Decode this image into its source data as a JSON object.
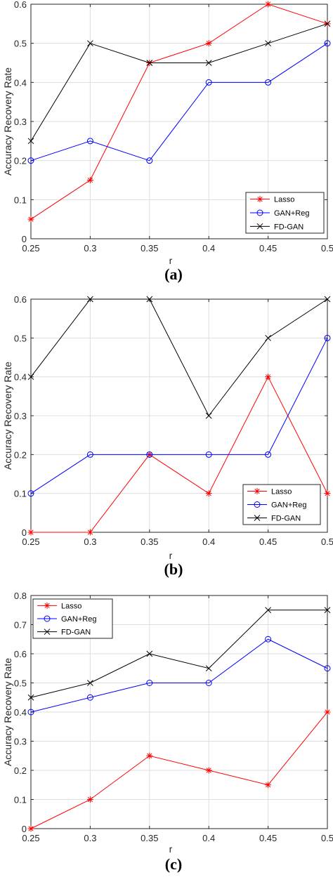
{
  "chart_data": [
    {
      "type": "line",
      "caption": "(a)",
      "xlabel": "r",
      "ylabel": "Accuracy Recovery Rate",
      "x": [
        0.25,
        0.3,
        0.35,
        0.4,
        0.45,
        0.5
      ],
      "xtick_labels": [
        "0.25",
        "0.3",
        "0.35",
        "0.4",
        "0.45",
        "0.5"
      ],
      "xlim": [
        0.25,
        0.5
      ],
      "ylim": [
        0,
        0.6
      ],
      "yticks": [
        0,
        0.1,
        0.2,
        0.3,
        0.4,
        0.5,
        0.6
      ],
      "ytick_labels": [
        "0",
        "0.1",
        "0.2",
        "0.3",
        "0.4",
        "0.5",
        "0.6"
      ],
      "grid": true,
      "legend_position": "bottom-right",
      "series": [
        {
          "name": "Lasso",
          "color": "#ff0000",
          "marker": "star",
          "values": [
            0.05,
            0.15,
            0.45,
            0.5,
            0.6,
            0.55
          ]
        },
        {
          "name": "GAN+Reg",
          "color": "#0000ff",
          "marker": "circle",
          "values": [
            0.2,
            0.25,
            0.2,
            0.4,
            0.4,
            0.5
          ]
        },
        {
          "name": "FD-GAN",
          "color": "#000000",
          "marker": "x",
          "values": [
            0.25,
            0.5,
            0.45,
            0.45,
            0.5,
            0.55
          ]
        }
      ]
    },
    {
      "type": "line",
      "caption": "(b)",
      "xlabel": "r",
      "ylabel": "Accuracy Recovery Rate",
      "x": [
        0.25,
        0.3,
        0.35,
        0.4,
        0.45,
        0.5
      ],
      "xtick_labels": [
        "0.25",
        "0.3",
        "0.35",
        "0.4",
        "0.45",
        "0.5"
      ],
      "xlim": [
        0.25,
        0.5
      ],
      "ylim": [
        0,
        0.6
      ],
      "yticks": [
        0,
        0.1,
        0.2,
        0.3,
        0.4,
        0.5,
        0.6
      ],
      "ytick_labels": [
        "0",
        "0.1",
        "0.2",
        "0.3",
        "0.4",
        "0.5",
        "0.6"
      ],
      "grid": true,
      "legend_position": "bottom-right",
      "series": [
        {
          "name": "Lasso",
          "color": "#ff0000",
          "marker": "star",
          "values": [
            0,
            0,
            0.2,
            0.1,
            0.4,
            0.1
          ]
        },
        {
          "name": "GAN+Reg",
          "color": "#0000ff",
          "marker": "circle",
          "values": [
            0.1,
            0.2,
            0.2,
            0.2,
            0.2,
            0.5
          ]
        },
        {
          "name": "FD-GAN",
          "color": "#000000",
          "marker": "x",
          "values": [
            0.4,
            0.6,
            0.6,
            0.3,
            0.5,
            0.6
          ]
        }
      ]
    },
    {
      "type": "line",
      "caption": "(c)",
      "xlabel": "r",
      "ylabel": "Accuracy Recovery Rate",
      "x": [
        0.25,
        0.3,
        0.35,
        0.4,
        0.45,
        0.5
      ],
      "xtick_labels": [
        "0.25",
        "0.3",
        "0.35",
        "0.4",
        "0.45",
        "0.5"
      ],
      "xlim": [
        0.25,
        0.5
      ],
      "ylim": [
        0,
        0.8
      ],
      "yticks": [
        0,
        0.1,
        0.2,
        0.3,
        0.4,
        0.5,
        0.6,
        0.7,
        0.8
      ],
      "ytick_labels": [
        "0",
        "0.1",
        "0.2",
        "0.3",
        "0.4",
        "0.5",
        "0.6",
        "0.7",
        "0.8"
      ],
      "grid": true,
      "legend_position": "top-left",
      "series": [
        {
          "name": "Lasso",
          "color": "#ff0000",
          "marker": "star",
          "values": [
            0,
            0.1,
            0.25,
            0.2,
            0.15,
            0.4
          ]
        },
        {
          "name": "GAN+Reg",
          "color": "#0000ff",
          "marker": "circle",
          "values": [
            0.4,
            0.45,
            0.5,
            0.5,
            0.65,
            0.55
          ]
        },
        {
          "name": "FD-GAN",
          "color": "#000000",
          "marker": "x",
          "values": [
            0.45,
            0.5,
            0.6,
            0.55,
            0.75,
            0.75
          ]
        }
      ]
    }
  ]
}
